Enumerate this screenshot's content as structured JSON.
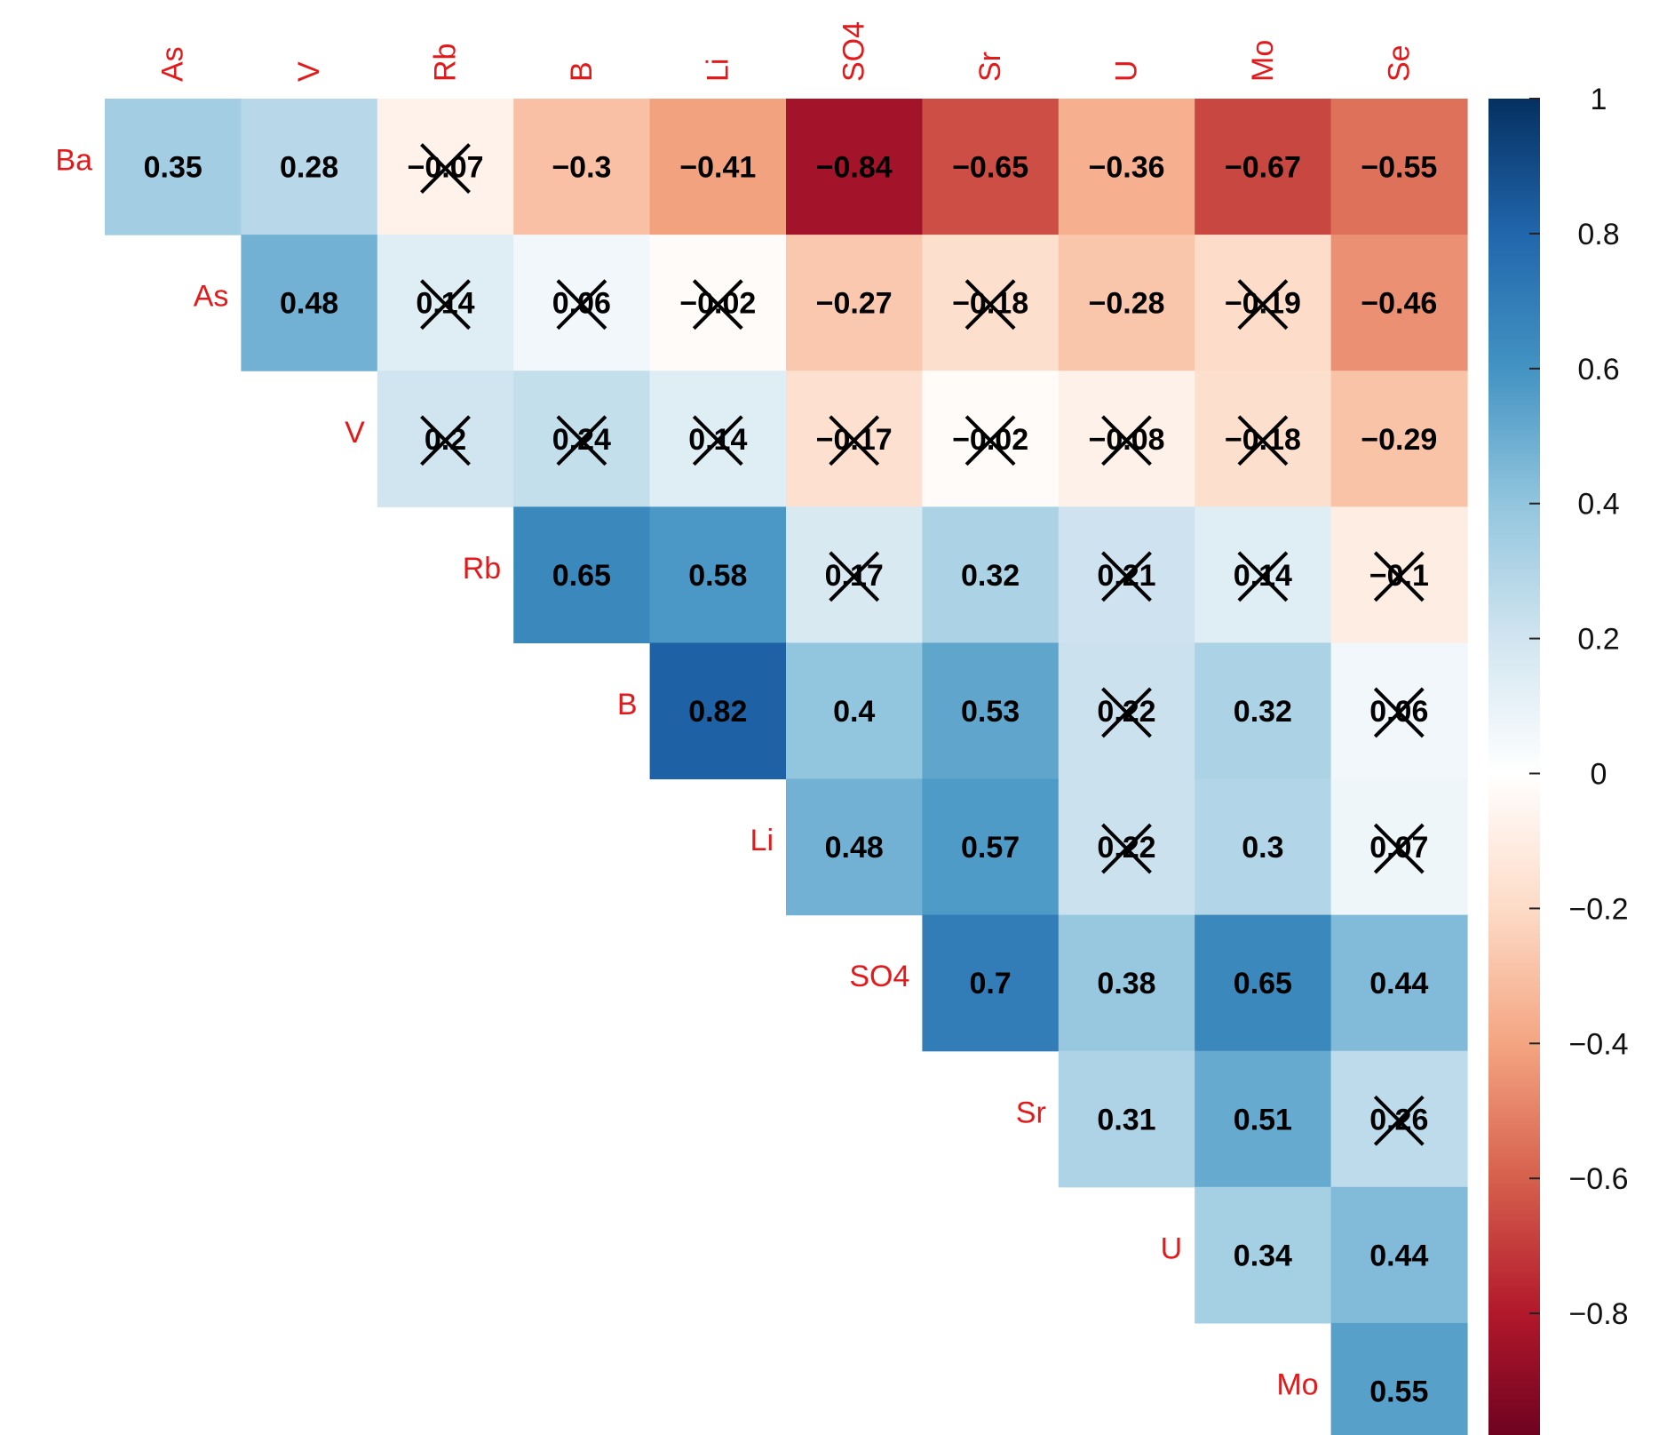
{
  "chart_data": {
    "type": "heatmap",
    "title": "",
    "rows": [
      "Ba",
      "As",
      "V",
      "Rb",
      "B",
      "Li",
      "SO4",
      "Sr",
      "U",
      "Mo"
    ],
    "columns": [
      "As",
      "V",
      "Rb",
      "B",
      "Li",
      "SO4",
      "Sr",
      "U",
      "Mo",
      "Se"
    ],
    "layout": "upper-triangle",
    "cells": [
      [
        0.35,
        0.28,
        -0.07,
        -0.3,
        -0.41,
        -0.84,
        -0.65,
        -0.36,
        -0.67,
        -0.55
      ],
      [
        null,
        0.48,
        0.14,
        0.06,
        -0.02,
        -0.27,
        -0.18,
        -0.28,
        -0.19,
        -0.46
      ],
      [
        null,
        null,
        0.2,
        0.24,
        0.14,
        -0.17,
        -0.02,
        -0.08,
        -0.18,
        -0.29
      ],
      [
        null,
        null,
        null,
        0.65,
        0.58,
        0.17,
        0.32,
        0.21,
        0.14,
        -0.1
      ],
      [
        null,
        null,
        null,
        null,
        0.82,
        0.4,
        0.53,
        0.22,
        0.32,
        0.06
      ],
      [
        null,
        null,
        null,
        null,
        null,
        0.48,
        0.57,
        0.22,
        0.3,
        0.07
      ],
      [
        null,
        null,
        null,
        null,
        null,
        null,
        0.7,
        0.38,
        0.65,
        0.44
      ],
      [
        null,
        null,
        null,
        null,
        null,
        null,
        null,
        0.31,
        0.51,
        0.26
      ],
      [
        null,
        null,
        null,
        null,
        null,
        null,
        null,
        null,
        0.34,
        0.44
      ],
      [
        null,
        null,
        null,
        null,
        null,
        null,
        null,
        null,
        null,
        0.55
      ]
    ],
    "labels": [
      [
        "0.35",
        "0.28",
        "−0.07",
        "−0.3",
        "−0.41",
        "−0.84",
        "−0.65",
        "−0.36",
        "−0.67",
        "−0.55"
      ],
      [
        null,
        "0.48",
        "0.14",
        "0.06",
        "−0.02",
        "−0.27",
        "−0.18",
        "−0.28",
        "−0.19",
        "−0.46"
      ],
      [
        null,
        null,
        "0.2",
        "0.24",
        "0.14",
        "−0.17",
        "−0.02",
        "−0.08",
        "−0.18",
        "−0.29"
      ],
      [
        null,
        null,
        null,
        "0.65",
        "0.58",
        "0.17",
        "0.32",
        "0.21",
        "0.14",
        "−0.1"
      ],
      [
        null,
        null,
        null,
        null,
        "0.82",
        "0.4",
        "0.53",
        "0.22",
        "0.32",
        "0.06"
      ],
      [
        null,
        null,
        null,
        null,
        null,
        "0.48",
        "0.57",
        "0.22",
        "0.3",
        "0.07"
      ],
      [
        null,
        null,
        null,
        null,
        null,
        null,
        "0.7",
        "0.38",
        "0.65",
        "0.44"
      ],
      [
        null,
        null,
        null,
        null,
        null,
        null,
        null,
        "0.31",
        "0.51",
        "0.26"
      ],
      [
        null,
        null,
        null,
        null,
        null,
        null,
        null,
        null,
        "0.34",
        "0.44"
      ],
      [
        null,
        null,
        null,
        null,
        null,
        null,
        null,
        null,
        null,
        "0.55"
      ]
    ],
    "crossed": [
      [
        false,
        false,
        true,
        false,
        false,
        false,
        false,
        false,
        false,
        false
      ],
      [
        false,
        false,
        true,
        true,
        true,
        false,
        true,
        false,
        true,
        false
      ],
      [
        false,
        false,
        true,
        true,
        true,
        true,
        true,
        true,
        true,
        false
      ],
      [
        false,
        false,
        false,
        false,
        false,
        true,
        false,
        true,
        true,
        true
      ],
      [
        false,
        false,
        false,
        false,
        false,
        false,
        false,
        true,
        false,
        true
      ],
      [
        false,
        false,
        false,
        false,
        false,
        false,
        false,
        true,
        false,
        true
      ],
      [
        false,
        false,
        false,
        false,
        false,
        false,
        false,
        false,
        false,
        false
      ],
      [
        false,
        false,
        false,
        false,
        false,
        false,
        false,
        false,
        false,
        true
      ],
      [
        false,
        false,
        false,
        false,
        false,
        false,
        false,
        false,
        false,
        false
      ],
      [
        false,
        false,
        false,
        false,
        false,
        false,
        false,
        false,
        false,
        false
      ]
    ],
    "colorbar": {
      "ticks": [
        1,
        0.8,
        0.6,
        0.4,
        0.2,
        0,
        -0.2,
        -0.4,
        -0.6,
        -0.8
      ],
      "tick_labels": [
        "1",
        "0.8",
        "0.6",
        "0.4",
        "0.2",
        "0",
        "−0.2",
        "−0.4",
        "−0.6",
        "−0.8"
      ],
      "range": [
        -1,
        1
      ]
    },
    "palette": [
      "#67001f",
      "#b2182b",
      "#d6604d",
      "#f4a582",
      "#fddbc7",
      "#ffffff",
      "#d1e5f0",
      "#92c5de",
      "#4393c3",
      "#2166ac",
      "#053061"
    ],
    "label_color": "#e31a1c"
  }
}
